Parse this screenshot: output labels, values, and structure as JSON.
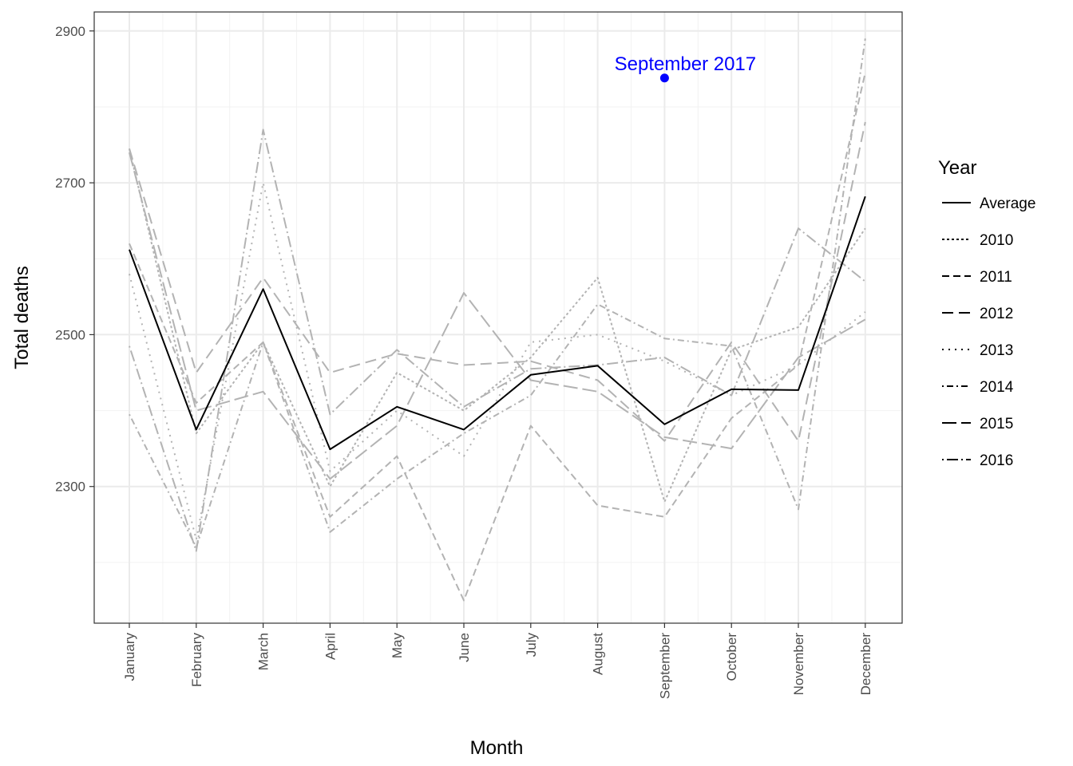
{
  "chart_data": {
    "type": "line",
    "xlabel": "Month",
    "ylabel": "Total deaths",
    "categories": [
      "January",
      "February",
      "March",
      "April",
      "May",
      "June",
      "July",
      "August",
      "September",
      "October",
      "November",
      "December"
    ],
    "y_ticks": [
      2300,
      2500,
      2700,
      2900
    ],
    "y_tick_labels": [
      "2300",
      "2500",
      "2700",
      "2900"
    ],
    "ylim": [
      2120,
      2925
    ],
    "grid": true,
    "legend": {
      "title": "Year",
      "position": "right"
    },
    "colors": {
      "average": "#000000",
      "years": "#b3b3b3",
      "annotation": "#0000ff",
      "panel_border": "#333333",
      "grid_major": "#ebebeb",
      "grid_minor": "#f2f2f2"
    },
    "series": [
      {
        "name": "Average",
        "dash": "solid",
        "values": [
          2612,
          2375,
          2560,
          2349,
          2405,
          2375,
          2447,
          2459,
          2382,
          2428,
          2427,
          2682
        ]
      },
      {
        "name": "2010",
        "dash": "dotted",
        "values": [
          2745,
          2370,
          2490,
          2300,
          2450,
          2400,
          2470,
          2575,
          2280,
          2480,
          2510,
          2640
        ]
      },
      {
        "name": "2011",
        "dash": "dashed",
        "values": [
          2620,
          2410,
          2490,
          2260,
          2340,
          2150,
          2380,
          2275,
          2260,
          2390,
          2460,
          2845
        ]
      },
      {
        "name": "2012",
        "dash": "long-dash",
        "values": [
          2745,
          2450,
          2575,
          2450,
          2475,
          2460,
          2465,
          2440,
          2360,
          2490,
          2360,
          2780
        ]
      },
      {
        "name": "2013",
        "dash": "dot-spaced",
        "values": [
          2580,
          2230,
          2700,
          2320,
          2400,
          2340,
          2490,
          2500,
          2465,
          2420,
          2460,
          2530
        ]
      },
      {
        "name": "2014",
        "dash": "dot-dash",
        "values": [
          2395,
          2220,
          2490,
          2240,
          2310,
          2370,
          2420,
          2540,
          2495,
          2485,
          2270,
          2890
        ]
      },
      {
        "name": "2015",
        "dash": "long-dash-2",
        "values": [
          2740,
          2400,
          2425,
          2310,
          2380,
          2555,
          2440,
          2425,
          2365,
          2350,
          2470,
          2520
        ]
      },
      {
        "name": "2016",
        "dash": "long-dot-dash",
        "values": [
          2485,
          2215,
          2770,
          2395,
          2480,
          2405,
          2455,
          2460,
          2470,
          2420,
          2640,
          2570
        ]
      }
    ],
    "annotation": {
      "text": "September 2017",
      "x": "September",
      "y": 2838
    }
  }
}
